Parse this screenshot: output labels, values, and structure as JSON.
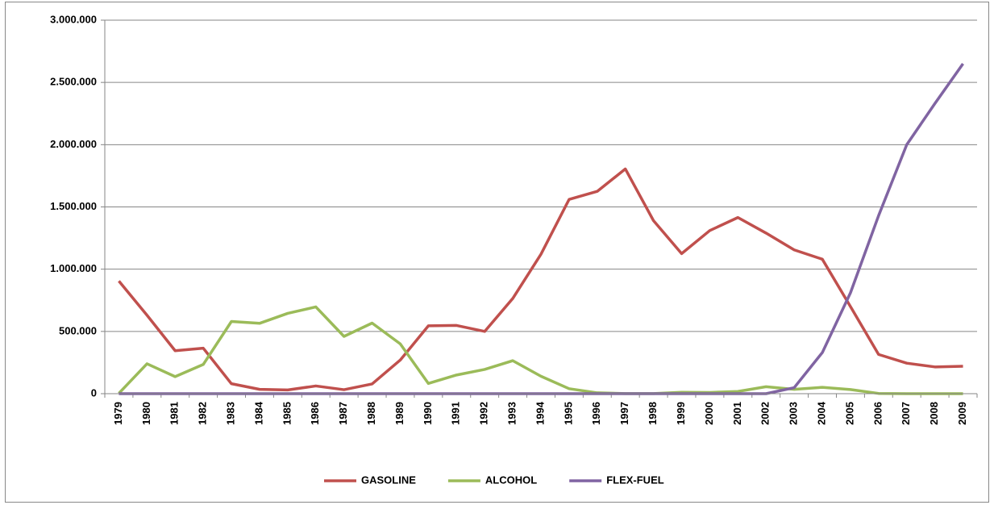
{
  "chart_data": {
    "type": "line",
    "categories": [
      "1979",
      "1980",
      "1981",
      "1982",
      "1983",
      "1984",
      "1985",
      "1986",
      "1987",
      "1988",
      "1989",
      "1990",
      "1991",
      "1992",
      "1993",
      "1994",
      "1995",
      "1996",
      "1997",
      "1998",
      "1999",
      "2000",
      "2001",
      "2002",
      "2003",
      "2004",
      "2005",
      "2006",
      "2007",
      "2008",
      "2009"
    ],
    "series": [
      {
        "name": "GASOLINE",
        "color": "#c0504d",
        "values": [
          905000,
          630000,
          345000,
          365000,
          80000,
          35000,
          30000,
          62000,
          32000,
          78000,
          270000,
          545000,
          548000,
          500000,
          765000,
          1120000,
          1560000,
          1625000,
          1805000,
          1390000,
          1125000,
          1310000,
          1415000,
          1290000,
          1155000,
          1080000,
          700000,
          315000,
          245000,
          215000,
          220000
        ]
      },
      {
        "name": "ALCOHOL",
        "color": "#9bbb59",
        "values": [
          3000,
          240000,
          137000,
          235000,
          580000,
          565000,
          645000,
          697000,
          460000,
          567000,
          400000,
          82000,
          150000,
          195000,
          265000,
          140000,
          40000,
          7000,
          1000,
          1000,
          11000,
          10000,
          18000,
          56000,
          35000,
          51000,
          33000,
          2000,
          0,
          0,
          0
        ]
      },
      {
        "name": "FLEX-FUEL",
        "color": "#8064a2",
        "values": [
          0,
          0,
          0,
          0,
          0,
          0,
          0,
          0,
          0,
          0,
          0,
          0,
          0,
          0,
          0,
          0,
          0,
          0,
          0,
          0,
          0,
          0,
          0,
          0,
          48000,
          330000,
          810000,
          1430000,
          2000000,
          2330000,
          2650000
        ]
      }
    ],
    "ylim": [
      0,
      3000000
    ],
    "yticks": [
      {
        "value": 0,
        "label": "0"
      },
      {
        "value": 500000,
        "label": "500.000"
      },
      {
        "value": 1000000,
        "label": "1.000.000"
      },
      {
        "value": 1500000,
        "label": "1.500.000"
      },
      {
        "value": 2000000,
        "label": "2.000.000"
      },
      {
        "value": 2500000,
        "label": "2.500.000"
      },
      {
        "value": 3000000,
        "label": "3.000.000"
      }
    ],
    "grid": true,
    "legend": "bottom"
  }
}
